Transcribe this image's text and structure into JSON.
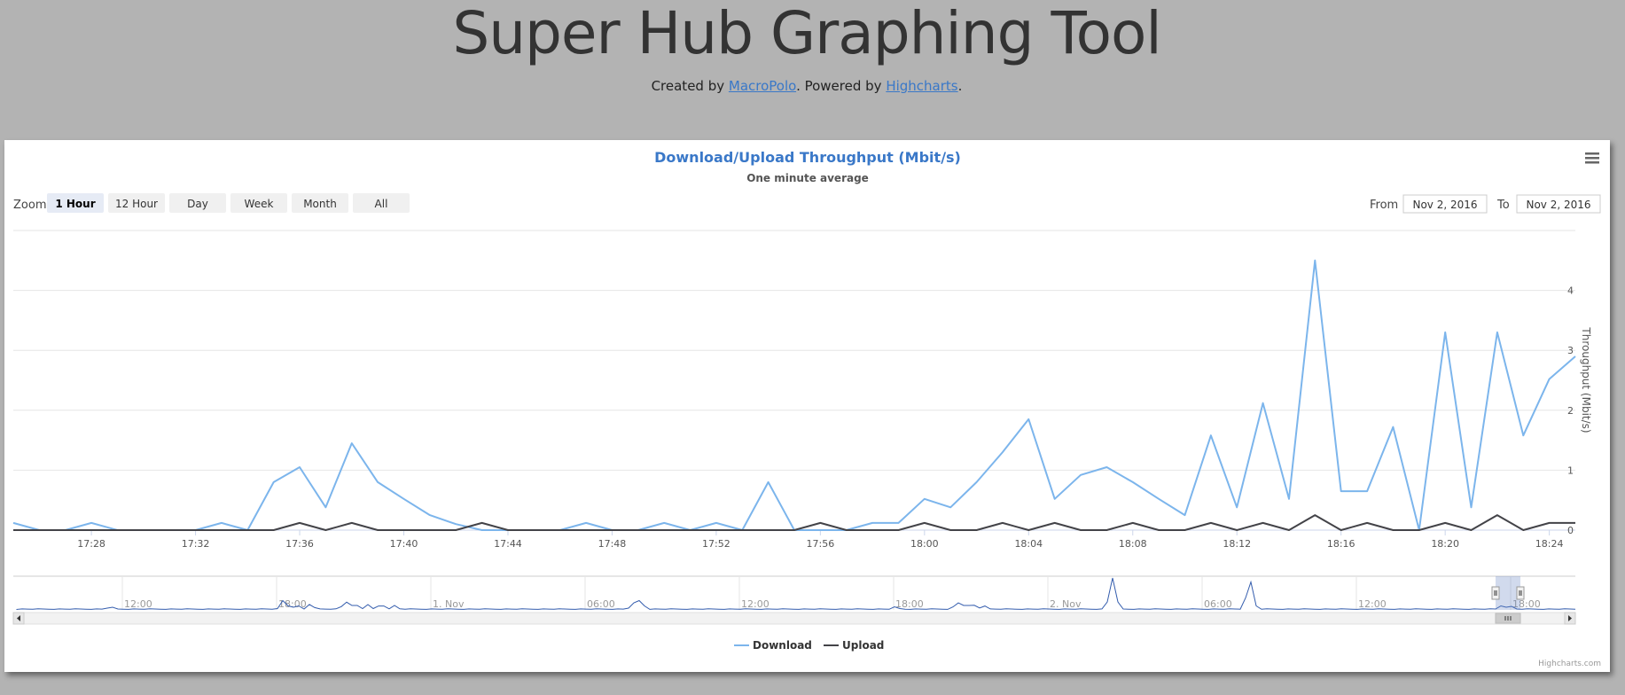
{
  "header": {
    "title": "Super Hub Graphing Tool",
    "created_by": "Created by",
    "author": "MacroPolo",
    "powered_by": ". Powered by",
    "library": "Highcharts",
    "end": "."
  },
  "chart_data": {
    "type": "line",
    "title": "Download/Upload Throughput (Mbit/s)",
    "subtitle": "One minute average",
    "ylabel": "Throughput (Mbit/s)",
    "ylim": [
      0,
      5
    ],
    "yticks": [
      "0",
      "1",
      "2",
      "3",
      "4"
    ],
    "xlim": [
      0,
      60
    ],
    "xticks": [
      "17:28",
      "17:32",
      "17:36",
      "17:40",
      "17:44",
      "17:48",
      "17:52",
      "17:56",
      "18:00",
      "18:04",
      "18:08",
      "18:12",
      "18:16",
      "18:20",
      "18:24"
    ],
    "x": [
      "17:25",
      "17:26",
      "17:27",
      "17:28",
      "17:29",
      "17:30",
      "17:31",
      "17:32",
      "17:33",
      "17:34",
      "17:35",
      "17:36",
      "17:37",
      "17:38",
      "17:39",
      "17:40",
      "17:41",
      "17:42",
      "17:43",
      "17:44",
      "17:45",
      "17:46",
      "17:47",
      "17:48",
      "17:49",
      "17:50",
      "17:51",
      "17:52",
      "17:53",
      "17:54",
      "17:55",
      "17:56",
      "17:57",
      "17:58",
      "17:59",
      "18:00",
      "18:01",
      "18:02",
      "18:03",
      "18:04",
      "18:05",
      "18:06",
      "18:07",
      "18:08",
      "18:09",
      "18:10",
      "18:11",
      "18:12",
      "18:13",
      "18:14",
      "18:15",
      "18:16",
      "18:17",
      "18:18",
      "18:19",
      "18:20",
      "18:21",
      "18:22",
      "18:23",
      "18:24",
      "18:25"
    ],
    "series": [
      {
        "name": "Download",
        "color": "#7cb5ec",
        "values": [
          0.12,
          0,
          0,
          0.12,
          0,
          0,
          0,
          0,
          0.12,
          0,
          0.8,
          1.05,
          0.38,
          1.45,
          0.8,
          0.52,
          0.25,
          0.1,
          0,
          0,
          0,
          0,
          0.12,
          0,
          0,
          0.12,
          0,
          0.12,
          0,
          0.8,
          0,
          0,
          0,
          0.12,
          0.12,
          0.52,
          0.38,
          0.8,
          1.3,
          1.85,
          0.52,
          0.92,
          1.05,
          0.8,
          0.52,
          0.25,
          1.58,
          0.38,
          2.12,
          0.52,
          4.5,
          0.65,
          0.65,
          1.72,
          0,
          3.3,
          0.38,
          3.3,
          1.58,
          2.52,
          2.9
        ]
      },
      {
        "name": "Upload",
        "color": "#434348",
        "values": [
          0,
          0,
          0,
          0,
          0,
          0,
          0,
          0,
          0,
          0,
          0,
          0.12,
          0,
          0.12,
          0,
          0,
          0,
          0,
          0.12,
          0,
          0,
          0,
          0,
          0,
          0,
          0,
          0,
          0,
          0,
          0,
          0,
          0.12,
          0,
          0,
          0,
          0.12,
          0,
          0,
          0.12,
          0,
          0.12,
          0,
          0,
          0.12,
          0,
          0,
          0.12,
          0,
          0.12,
          0,
          0.25,
          0,
          0.12,
          0,
          0,
          0.12,
          0,
          0.25,
          0,
          0.12,
          0.12
        ]
      }
    ],
    "navigator_labels": [
      "12:00",
      "18:00",
      "1. Nov",
      "06:00",
      "12:00",
      "18:00",
      "2. Nov",
      "06:00",
      "12:00",
      "18:00"
    ],
    "legend_position": "bottom-center",
    "credits": "Highcharts.com"
  },
  "controls": {
    "zoom_label": "Zoom",
    "zoom_buttons": [
      "1 Hour",
      "12 Hour",
      "Day",
      "Week",
      "Month",
      "All"
    ],
    "from_label": "From",
    "from_value": "Nov 2, 2016",
    "to_label": "To",
    "to_value": "Nov 2, 2016"
  },
  "colors": {
    "download": "#7cb5ec",
    "upload": "#434348",
    "title": "#3a78c8"
  }
}
